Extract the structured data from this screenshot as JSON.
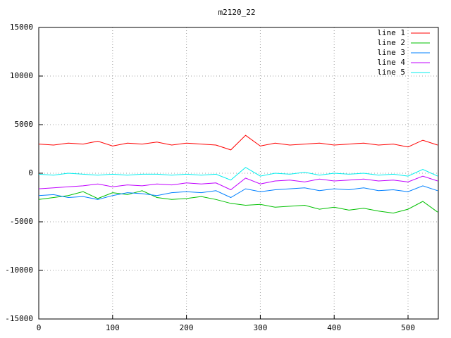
{
  "chart_data": {
    "type": "line",
    "title": "m2120_22",
    "x": [
      0,
      20,
      40,
      60,
      80,
      100,
      120,
      140,
      160,
      180,
      200,
      220,
      240,
      260,
      280,
      300,
      320,
      340,
      360,
      380,
      400,
      420,
      440,
      460,
      480,
      500,
      520,
      540
    ],
    "series": [
      {
        "name": "line 1",
        "color": "#ff0000",
        "values": [
          3000,
          2900,
          3100,
          3000,
          3300,
          2800,
          3100,
          3000,
          3200,
          2900,
          3100,
          3000,
          2900,
          2400,
          3900,
          2800,
          3100,
          2900,
          3000,
          3100,
          2900,
          3000,
          3100,
          2900,
          3000,
          2700,
          3400,
          2900
        ]
      },
      {
        "name": "line 2",
        "color": "#00c000",
        "values": [
          -2700,
          -2500,
          -2300,
          -1900,
          -2600,
          -2000,
          -2200,
          -1800,
          -2500,
          -2700,
          -2600,
          -2400,
          -2700,
          -3100,
          -3300,
          -3200,
          -3500,
          -3400,
          -3300,
          -3700,
          -3500,
          -3800,
          -3600,
          -3900,
          -4100,
          -3700,
          -2900,
          -4000
        ]
      },
      {
        "name": "line 3",
        "color": "#0080ff",
        "values": [
          -2300,
          -2200,
          -2500,
          -2400,
          -2700,
          -2300,
          -2000,
          -2100,
          -2300,
          -2000,
          -1900,
          -2000,
          -1800,
          -2500,
          -1600,
          -1900,
          -1700,
          -1600,
          -1500,
          -1800,
          -1600,
          -1700,
          -1500,
          -1800,
          -1700,
          -1900,
          -1300,
          -1800
        ]
      },
      {
        "name": "line 4",
        "color": "#c000ff",
        "values": [
          -1600,
          -1500,
          -1400,
          -1300,
          -1100,
          -1400,
          -1200,
          -1300,
          -1100,
          -1200,
          -1000,
          -1100,
          -1000,
          -1700,
          -500,
          -1100,
          -800,
          -700,
          -900,
          -600,
          -800,
          -700,
          -600,
          -800,
          -700,
          -900,
          -300,
          -800
        ]
      },
      {
        "name": "line 5",
        "color": "#00eeee",
        "values": [
          -100,
          -200,
          0,
          -100,
          -200,
          -100,
          -200,
          -100,
          -100,
          -200,
          -100,
          -200,
          -100,
          -700,
          600,
          -300,
          0,
          -100,
          100,
          -200,
          0,
          -100,
          0,
          -200,
          -100,
          -300,
          400,
          -300
        ]
      }
    ],
    "xlim": [
      0,
      541
    ],
    "ylim": [
      -15000,
      15000
    ],
    "xticks": [
      0,
      100,
      200,
      300,
      400,
      500
    ],
    "yticks": [
      -15000,
      -10000,
      -5000,
      0,
      5000,
      10000,
      15000
    ],
    "grid": true,
    "legend": "top-right"
  }
}
